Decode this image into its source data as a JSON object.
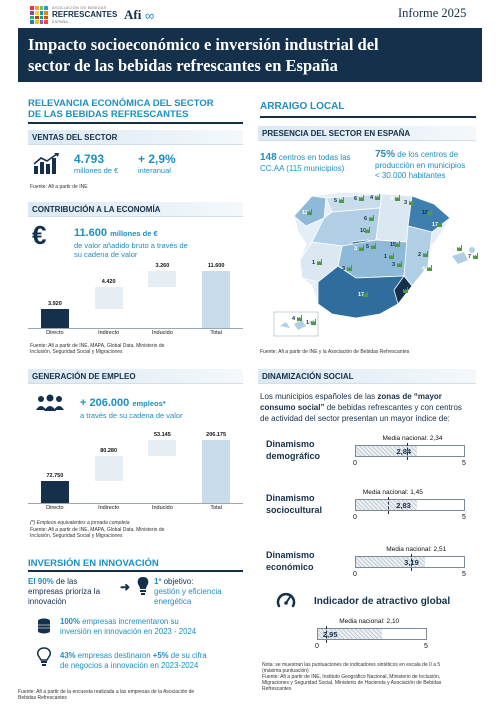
{
  "header": {
    "assoc_top": "ASOCIACIÓN DE BEBIDAS",
    "assoc_main": "REFRESCANTES",
    "assoc_country": "ESPAÑA",
    "afi": "Afi",
    "report": "Informe 2025",
    "title_line1": "Impacto socioeconómico e inversión industrial del",
    "title_line2": "sector de las bebidas refrescantes en España"
  },
  "colors": {
    "navy": "#14304a",
    "teal": "#1d8fc0",
    "bar_navy": "#14304a",
    "bar_light": "#c8dbe8",
    "bar_lighter": "#e6eef4"
  },
  "relevancia": {
    "title_line1": "RELEVANCIA ECONÓMICA DEL SECTOR",
    "title_line2": "DE LAS BEBIDAS REFRESCANTES",
    "ventas": {
      "header": "VENTAS DEL SECTOR",
      "icon": "chart-growth-icon",
      "value": "4.793",
      "value_unit": "millones de €",
      "growth": "+ 2,9%",
      "growth_unit": "interanual",
      "source": "Fuente: Afi a partir de INE"
    },
    "contribucion": {
      "header": "CONTRIBUCIÓN A LA ECONOMÍA",
      "icon": "euro-icon",
      "value": "11.600",
      "value_unit": "millones de €",
      "desc_line1": "de valor añadido bruto a través de",
      "desc_line2": "su cadena de valor",
      "source_line1": "Fuente: Afi a partir de INE, MAPA, Global Data, Ministerio de",
      "source_line2": "Inclusión, Seguridad Social y Migraciones"
    }
  },
  "empleo": {
    "header": "GENERACIÓN DE EMPLEO",
    "icon": "people-icon",
    "value": "+ 206.000",
    "value_unit": "empleos*",
    "desc": "a través de su cadena de valor",
    "note": "(*) Empleos equivalentes a jornada completa",
    "source_line1": "Fuente: Afi a partir de INE, MAPA, Global Data, Ministerio de",
    "source_line2": "Inclusión, Seguridad Social y Migraciones"
  },
  "chart_data": [
    {
      "type": "bar",
      "title": "",
      "categories": [
        "Directo",
        "Indirecto",
        "Inducido",
        "Total"
      ],
      "values": [
        3920,
        4420,
        3260,
        11600
      ],
      "labels": [
        "3.920",
        "4.420",
        "3.260",
        "11.600"
      ],
      "waterfall": true
    },
    {
      "type": "bar",
      "title": "",
      "categories": [
        "Directo",
        "Indirecto",
        "Inducido",
        "Total"
      ],
      "values": [
        72750,
        80280,
        53145,
        206175
      ],
      "labels": [
        "72.750",
        "80.280",
        "53.145",
        "206.175"
      ],
      "waterfall": true
    }
  ],
  "innovacion": {
    "title": "INVERSIÓN EN INNOVACIÓN",
    "pct_value": "El 90%",
    "pct_rest_line1": "de las",
    "pct_line2": "empresas prioriza la",
    "pct_line3": "innovación",
    "obj_num": "1º",
    "obj_label": "objetivo:",
    "obj_line2": "gestión y eficiencia",
    "obj_line3": "energética",
    "inv_bold": "100%",
    "inv_line1": "empresas incrementaron su",
    "inv_line2": "inversión en innovación en 2023 - 2024",
    "pct43_bold": "43%",
    "pct43_line1": "empresas destinaron",
    "pct43_bold2": "+5%",
    "pct43_line1b": "de su cifra",
    "pct43_line2": "de negocios a innovación en 2023-2024",
    "source_line1": "Fuente: Afi a partir de la encuesta realizada a las empresas de la Asociación de",
    "source_line2": "Bebidas Refrescantes"
  },
  "arraigo": {
    "title": "ARRAIGO LOCAL",
    "header": "PRESENCIA DEL SECTOR EN ESPAÑA",
    "centros_bold": "148",
    "centros_line1": "centros en todas las",
    "centros_line2": "CC.AA (115 municipios)",
    "pct_bold": "75%",
    "pct_line1": "de los centros de",
    "pct_line2": "producción en municipios",
    "pct_line3": "< 30.000 habitantes",
    "map_labels": [
      "12",
      "5",
      "6",
      "4",
      "4",
      "3",
      "6",
      "18",
      "17",
      "7",
      "10",
      "15",
      "3",
      "5",
      "1",
      "2",
      "4",
      "3",
      "3",
      "1",
      "17",
      "1",
      "4",
      "1",
      "7"
    ],
    "source": "Fuente: Afi a partir de INE y la Asociación de Bebidas Refrescantes"
  },
  "dinamizacion": {
    "header": "DINAMIZACIÓN SOCIAL",
    "intro_line1a": "Los municipios españoles de las",
    "intro_line1b": "zonas de “mayor",
    "intro_line2a": "consumo social”",
    "intro_line2b": "de bebidas refrescantes y con centros",
    "intro_line3": "de actividad del sector presentan un mayor índice de:",
    "scale_min": "0",
    "scale_max": "5",
    "items": [
      {
        "line1": "Dinamismo",
        "line2": "demográfico",
        "value": 2.84,
        "value_label": "2,84",
        "national": 2.34,
        "national_label": "Media nacional: 2,34"
      },
      {
        "line1": "Dinamismo",
        "line2": "sociocultural",
        "value": 2.83,
        "value_label": "2,83",
        "national": 1.45,
        "national_label": "Media nacional: 1,45"
      },
      {
        "line1": "Dinamismo",
        "line2": "económico",
        "value": 3.19,
        "value_label": "3,19",
        "national": 2.51,
        "national_label": "Media nacional: 2,51"
      }
    ],
    "global": {
      "title": "Indicador de atractivo global",
      "icon": "gauge-icon",
      "value": 2.95,
      "value_label": "2,95",
      "national": 2.1,
      "national_label": "Media nacional: 2,10"
    },
    "note_line1": "Nota: se muestran las puntuaciones de indicadores sintéticos en escala de 0 a 5",
    "note_line2": "(máxima puntuación)",
    "source_line1": "Fuente: Afi a partir de INE, Instituto Geográfico Nacional, Ministerio de Inclusión,",
    "source_line2": "Migraciones y Seguridad Social, Ministerio de Hacienda y Asociación de Bebidas",
    "source_line3": "Refrescantes"
  }
}
